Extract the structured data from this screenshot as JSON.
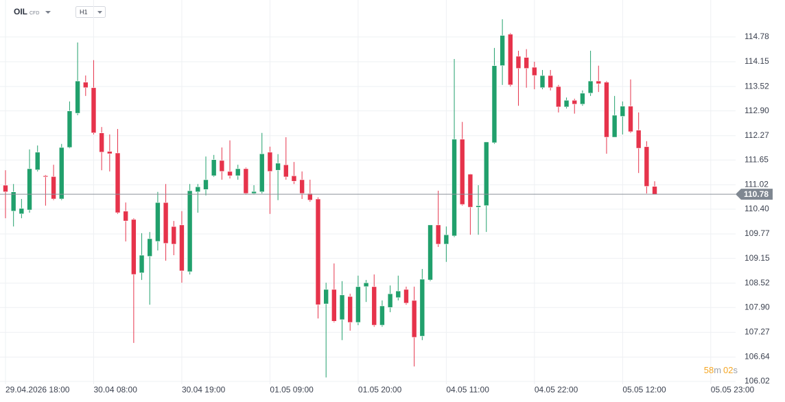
{
  "toolbar": {
    "symbol": "OIL",
    "symbol_type": "CFD",
    "interval": "H1"
  },
  "countdown": {
    "minutes": "58",
    "minutes_unit": "m",
    "seconds": "02",
    "seconds_unit": "s"
  },
  "chart_data": {
    "type": "candlestick",
    "up_color": "#21a06c",
    "down_color": "#e6334b",
    "grid": true,
    "current_price": 110.78,
    "xlim": [
      -0.685,
      91.1
    ],
    "xticks": [
      {
        "value": 0,
        "label": "29.04.2026 18:00"
      },
      {
        "value": 11,
        "label": "30.04 08:00"
      },
      {
        "value": 22,
        "label": "30.04 19:00"
      },
      {
        "value": 33,
        "label": "01.05 09:00"
      },
      {
        "value": 44,
        "label": "01.05 20:00"
      },
      {
        "value": 55,
        "label": "04.05 11:00"
      },
      {
        "value": 66,
        "label": "04.05 22:00"
      },
      {
        "value": 77,
        "label": "05.05 12:00"
      },
      {
        "value": 88,
        "label": "05.05 23:00"
      }
    ],
    "ylim": [
      105.95,
      115.72
    ],
    "yticks": [
      114.78,
      114.15,
      113.52,
      {
        "value": 112.9,
        "label": "112.90"
      },
      112.27,
      111.65,
      111.02,
      {
        "value": 110.4,
        "label": "110.40"
      },
      109.77,
      109.15,
      108.52,
      {
        "value": 107.9,
        "label": "107.90"
      },
      107.27,
      106.64,
      106.02
    ],
    "x": [
      0,
      1,
      2,
      3,
      4,
      5,
      6,
      7,
      8,
      9,
      10,
      11,
      12,
      13,
      14,
      15,
      16,
      17,
      18,
      19,
      20,
      21,
      22,
      23,
      24,
      25,
      26,
      27,
      28,
      29,
      30,
      31,
      32,
      33,
      34,
      35,
      36,
      37,
      38,
      39,
      40,
      41,
      42,
      43,
      44,
      45,
      46,
      47,
      48,
      49,
      50,
      51,
      52,
      53,
      54,
      55,
      56,
      57,
      58,
      59,
      60,
      61,
      62,
      63,
      64,
      65,
      66,
      67,
      68,
      69,
      70,
      71,
      72,
      73,
      74,
      75,
      76,
      77,
      78,
      79,
      80,
      81
    ],
    "open": [
      111.01,
      110.35,
      110.28,
      110.38,
      111.4,
      111.25,
      111.23,
      110.66,
      111.97,
      112.84,
      113.63,
      113.49,
      112.34,
      111.87,
      111.83,
      110.35,
      110.14,
      108.78,
      109.2,
      109.58,
      110.57,
      109.96,
      110.0,
      108.81,
      110.84,
      110.9,
      111.25,
      111.64,
      111.36,
      111.25,
      111.43,
      110.8,
      110.84,
      111.85,
      111.39,
      111.53,
      111.25,
      111.15,
      110.8,
      110.66,
      107.99,
      108.36,
      107.59,
      108.18,
      107.52,
      108.43,
      108.43,
      107.45,
      107.9,
      108.15,
      108.36,
      108.08,
      107.17,
      108.6,
      110.0,
      109.51,
      109.72,
      112.18,
      111.29,
      110.45,
      110.49,
      112.09,
      114.05,
      114.85,
      114.29,
      114.26,
      114.01,
      113.49,
      113.8,
      113.52,
      113.0,
      113.17,
      113.07,
      113.35,
      113.66,
      113.63,
      112.23,
      112.76,
      113.02,
      112.41,
      111.99,
      110.98
    ],
    "high": [
      111.39,
      111.04,
      110.66,
      111.92,
      112.02,
      111.27,
      111.53,
      112.06,
      113.14,
      114.64,
      113.8,
      114.19,
      112.49,
      112.3,
      112.44,
      110.57,
      110.17,
      109.79,
      109.82,
      110.84,
      111.04,
      110.1,
      110.35,
      111.04,
      111.04,
      111.74,
      111.78,
      111.97,
      112.15,
      111.53,
      111.46,
      111.01,
      112.34,
      111.99,
      111.8,
      112.23,
      111.6,
      111.36,
      111.15,
      110.7,
      108.53,
      109.02,
      108.57,
      108.25,
      108.71,
      108.6,
      108.74,
      108.08,
      108.46,
      108.71,
      108.43,
      108.43,
      108.88,
      110.0,
      110.87,
      109.96,
      114.22,
      112.62,
      111.3,
      111.01,
      112.11,
      114.5,
      115.23,
      114.88,
      114.43,
      114.47,
      114.15,
      113.94,
      113.94,
      113.56,
      113.24,
      113.21,
      113.42,
      114.43,
      114.05,
      113.66,
      113.28,
      113.14,
      113.7,
      112.86,
      112.13,
      111.11
    ],
    "low": [
      110.17,
      109.96,
      110.17,
      110.31,
      111.36,
      110.49,
      110.63,
      110.63,
      111.95,
      112.79,
      113.28,
      112.3,
      111.39,
      111.36,
      110.28,
      109.58,
      107.0,
      108.6,
      107.97,
      109.35,
      109.09,
      109.23,
      108.53,
      108.74,
      110.31,
      110.75,
      111.22,
      111.15,
      111.18,
      111.15,
      110.77,
      110.77,
      110.8,
      110.28,
      110.63,
      111.15,
      111.04,
      110.66,
      110.59,
      107.62,
      106.12,
      107.52,
      107.07,
      107.31,
      107.45,
      108.04,
      107.41,
      107.41,
      107.78,
      108.08,
      107.97,
      106.4,
      107.07,
      108.57,
      109.44,
      109.06,
      109.69,
      110.49,
      109.75,
      109.75,
      109.82,
      112.06,
      113.56,
      113.52,
      113.03,
      113.49,
      113.45,
      113.45,
      113.42,
      112.86,
      112.96,
      112.83,
      113.03,
      113.28,
      113.38,
      111.81,
      112.23,
      112.3,
      112.34,
      111.32,
      110.8,
      110.77
    ],
    "close": [
      110.84,
      110.84,
      110.42,
      111.43,
      111.85,
      111.22,
      110.66,
      111.97,
      112.9,
      113.66,
      113.49,
      112.34,
      111.85,
      111.81,
      110.31,
      110.1,
      108.74,
      109.23,
      109.65,
      110.57,
      109.53,
      109.51,
      108.83,
      110.87,
      110.97,
      111.15,
      111.66,
      111.36,
      111.25,
      111.43,
      110.8,
      110.85,
      111.81,
      111.36,
      111.57,
      111.22,
      111.11,
      110.8,
      110.63,
      107.97,
      108.36,
      107.55,
      108.22,
      107.52,
      108.43,
      108.53,
      107.45,
      107.94,
      108.25,
      108.32,
      108.01,
      107.14,
      108.62,
      110.0,
      109.51,
      109.75,
      112.18,
      110.52,
      110.45,
      110.49,
      112.11,
      114.05,
      114.82,
      113.56,
      113.98,
      113.98,
      113.8,
      113.8,
      113.49,
      113.0,
      113.17,
      113.07,
      113.35,
      113.66,
      113.59,
      112.23,
      112.79,
      113.02,
      112.37,
      111.95,
      110.98,
      110.77
    ]
  }
}
